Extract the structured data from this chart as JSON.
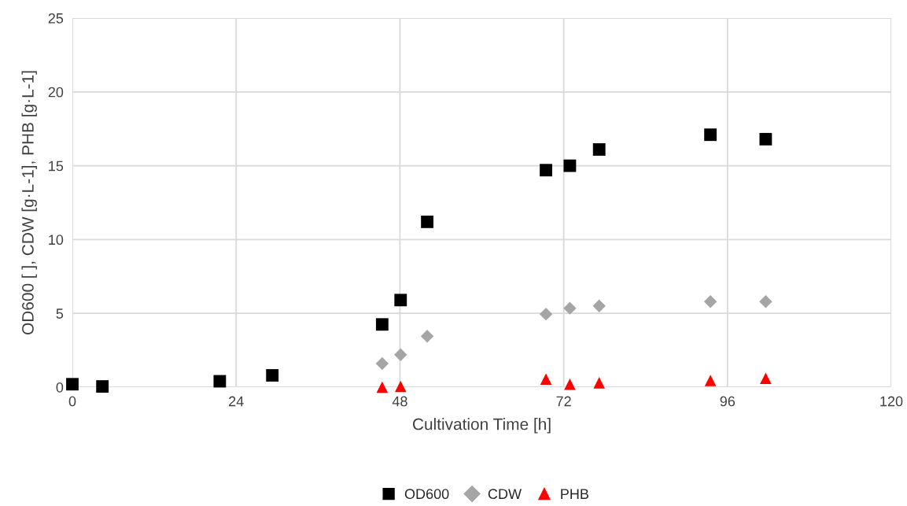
{
  "chart_data": {
    "type": "scatter",
    "xlabel": "Cultivation Time [h]",
    "ylabel": "OD600 [ ], CDW [g·L-1], PHB [g·L-1]",
    "xlim": [
      0,
      120
    ],
    "xticks": [
      0,
      24,
      48,
      72,
      96,
      120
    ],
    "ylim": [
      0,
      25
    ],
    "yticks": [
      0,
      5,
      10,
      15,
      20,
      25
    ],
    "grid": true,
    "legend": "bottom",
    "series": [
      {
        "name": "OD600",
        "color": "#000000",
        "marker": "square",
        "x": [
          0,
          4.4,
          21.6,
          29.3,
          45.4,
          48.1,
          52,
          69.4,
          72.9,
          77.2,
          93.5,
          101.6
        ],
        "values": [
          0.2,
          0.05,
          0.4,
          0.8,
          4.25,
          5.9,
          11.2,
          14.7,
          15.0,
          16.1,
          17.1,
          16.8
        ]
      },
      {
        "name": "CDW",
        "color": "#a5a5a5",
        "marker": "diamond",
        "x": [
          45.4,
          48.1,
          52,
          69.4,
          72.9,
          77.2,
          93.5,
          101.6
        ],
        "values": [
          1.6,
          2.2,
          3.45,
          4.95,
          5.35,
          5.5,
          5.8,
          5.8
        ]
      },
      {
        "name": "PHB",
        "color": "#ff0000",
        "marker": "triangle",
        "x": [
          45.4,
          48.1,
          69.4,
          72.9,
          77.2,
          93.5,
          101.6
        ],
        "values": [
          0.0,
          0.05,
          0.55,
          0.2,
          0.3,
          0.45,
          0.6
        ]
      }
    ]
  }
}
